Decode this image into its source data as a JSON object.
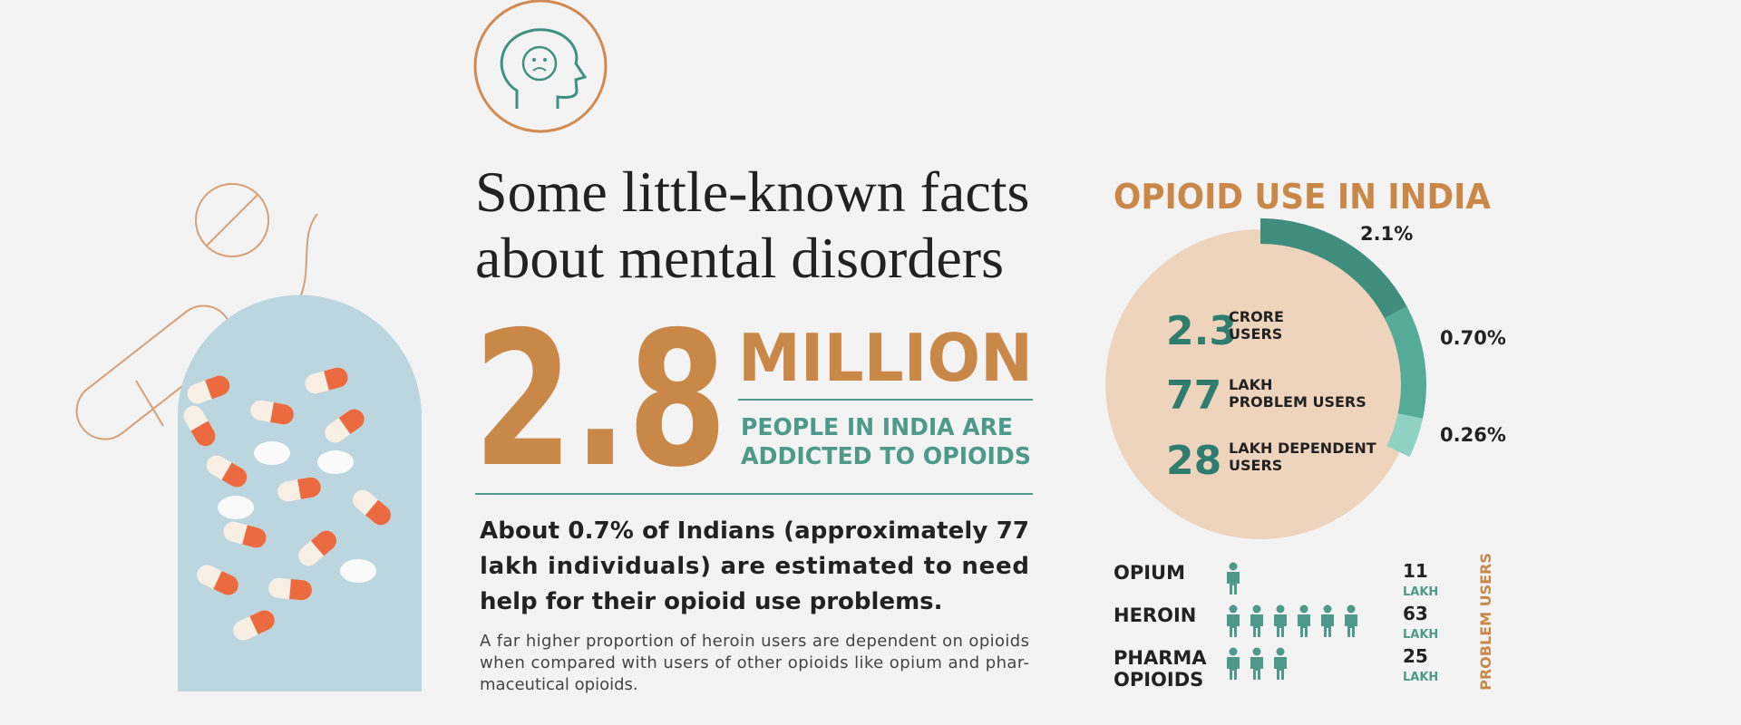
{
  "header": {
    "title": [
      "Some little-known facts",
      "about mental disorders"
    ]
  },
  "stat": {
    "number": "2.8",
    "unit": "MILLION",
    "caption": [
      "PEOPLE IN INDIA ARE",
      "ADDICTED TO OPIOIDS"
    ]
  },
  "lead": [
    "About 0.7% of Indians (approximately 77",
    "lakh individuals) are estimated to need",
    "help for their opioid use problems."
  ],
  "body": [
    "A far higher proportion of heroin users are dependent on opioids",
    "when compared with users of other opioids like opium and phar-",
    "maceutical opioids."
  ],
  "panel": {
    "title": "OPIOID USE IN INDIA",
    "arc_labels": [
      "2.1%",
      "0.70%",
      "0.26%"
    ],
    "items": [
      {
        "number": "2.3",
        "label": [
          "CRORE",
          "USERS"
        ]
      },
      {
        "number": "77",
        "label": [
          "LAKH",
          "PROBLEM USERS"
        ]
      },
      {
        "number": "28",
        "label": [
          "LAKH DEPENDENT",
          "USERS"
        ]
      }
    ],
    "rows": [
      {
        "name": [
          "OPIUM"
        ],
        "icons": 1,
        "number": "11",
        "unit": "LAKH"
      },
      {
        "name": [
          "HEROIN"
        ],
        "icons": 6,
        "number": "63",
        "unit": "LAKH"
      },
      {
        "name": [
          "PHARMA",
          "OPIOIDS"
        ],
        "icons": 3,
        "number": "25",
        "unit": "LAKH"
      }
    ],
    "side_label": "PROBLEM USERS"
  }
}
